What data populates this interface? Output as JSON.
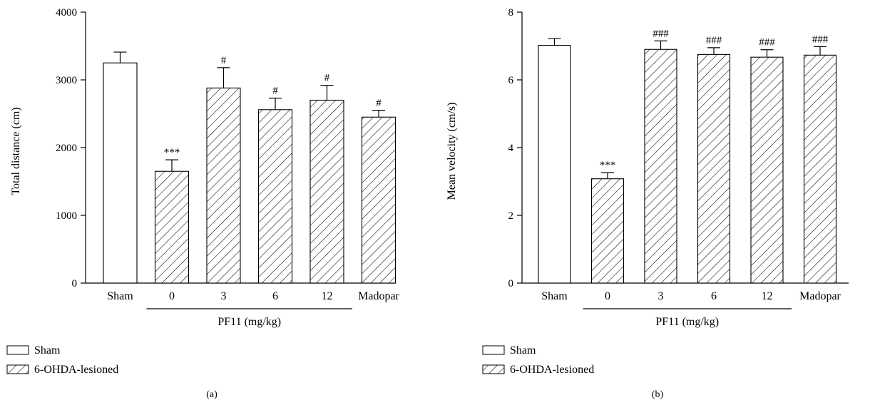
{
  "colors": {
    "ink": "#000000",
    "sham_fill": "#ffffff"
  },
  "legend": {
    "entries": [
      {
        "label": "Sham",
        "pattern": "solid-white"
      },
      {
        "label": "6-OHDA-lesioned",
        "pattern": "diagonal-hatch"
      }
    ]
  },
  "chart_data": [
    {
      "type": "bar",
      "panel_label": "(a)",
      "categories": [
        "Sham",
        "0",
        "3",
        "6",
        "12",
        "Madopar"
      ],
      "values": [
        3250,
        1650,
        2880,
        2560,
        2700,
        2450
      ],
      "errors": [
        160,
        170,
        300,
        170,
        220,
        100
      ],
      "annotations": [
        "",
        "***",
        "#",
        "#",
        "#",
        "#"
      ],
      "fills": [
        "solid-white",
        "diagonal-hatch",
        "diagonal-hatch",
        "diagonal-hatch",
        "diagonal-hatch",
        "diagonal-hatch"
      ],
      "ylabel": "Total distance (cm)",
      "group_label": "PF11 (mg/kg)",
      "group_span": [
        "0",
        "12"
      ],
      "ylim": [
        0,
        4000
      ],
      "yticks": [
        0,
        1000,
        2000,
        3000,
        4000
      ],
      "ytick_labels": [
        "0",
        "1000",
        "2000",
        "3000",
        "4000"
      ],
      "grid": false
    },
    {
      "type": "bar",
      "panel_label": "(b)",
      "categories": [
        "Sham",
        "0",
        "3",
        "6",
        "12",
        "Madopar"
      ],
      "values": [
        7.02,
        3.08,
        6.9,
        6.75,
        6.67,
        6.73
      ],
      "errors": [
        0.2,
        0.18,
        0.25,
        0.2,
        0.22,
        0.25
      ],
      "annotations": [
        "",
        "***",
        "###",
        "###",
        "###",
        "###"
      ],
      "fills": [
        "solid-white",
        "diagonal-hatch",
        "diagonal-hatch",
        "diagonal-hatch",
        "diagonal-hatch",
        "diagonal-hatch"
      ],
      "ylabel": "Mean velocity (cm/s)",
      "group_label": "PF11 (mg/kg)",
      "group_span": [
        "0",
        "12"
      ],
      "ylim": [
        0,
        8
      ],
      "yticks": [
        0,
        2,
        4,
        6,
        8
      ],
      "ytick_labels": [
        "0",
        "2",
        "4",
        "6",
        "8"
      ],
      "grid": false
    }
  ]
}
